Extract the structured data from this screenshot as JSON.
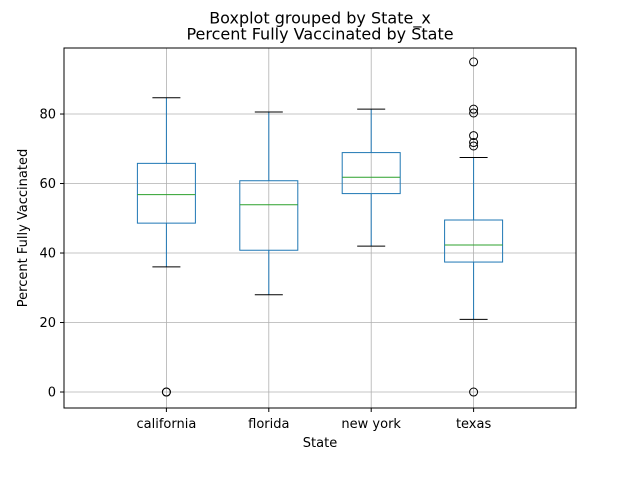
{
  "chart_data": {
    "type": "boxplot",
    "suptitle": "Boxplot grouped by State_x",
    "title": "Percent Fully Vaccinated by State",
    "xlabel": "State",
    "ylabel": "Percent Fully Vaccinated",
    "ylim": [
      -4.6,
      99
    ],
    "yticks": [
      0,
      20,
      40,
      60,
      80
    ],
    "grid": true,
    "categories": [
      "california",
      "florida",
      "new york",
      "texas"
    ],
    "boxes": [
      {
        "category": "california",
        "whisker_low": 36,
        "q1": 48.6,
        "median": 56.8,
        "q3": 65.8,
        "whisker_high": 84.7,
        "outliers": [
          0,
          0
        ]
      },
      {
        "category": "florida",
        "whisker_low": 28,
        "q1": 40.8,
        "median": 53.9,
        "q3": 60.8,
        "whisker_high": 80.6,
        "outliers": []
      },
      {
        "category": "new york",
        "whisker_low": 42,
        "q1": 57.1,
        "median": 61.8,
        "q3": 68.9,
        "whisker_high": 81.4,
        "outliers": []
      },
      {
        "category": "texas",
        "whisker_low": 20.9,
        "q1": 37.4,
        "median": 42.3,
        "q3": 49.5,
        "whisker_high": 67.5,
        "outliers": [
          0,
          70.8,
          71.8,
          73.8,
          80.3,
          81.4,
          95
        ]
      }
    ],
    "colors": {
      "box": "#1f77b4",
      "median": "#2ca02c",
      "grid": "#b0b0b0",
      "axes": "#000000"
    }
  }
}
